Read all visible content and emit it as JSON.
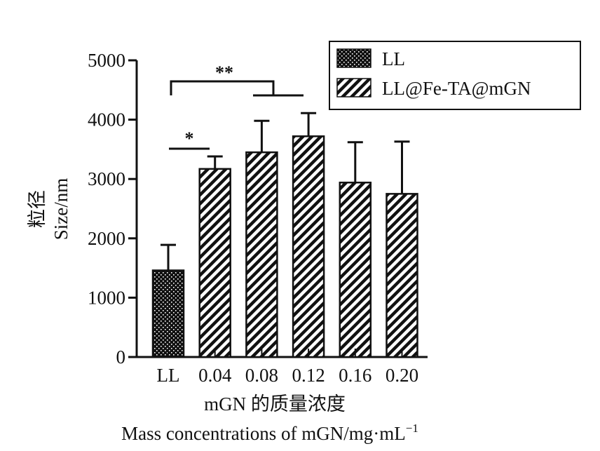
{
  "chart_data": {
    "type": "bar",
    "categories": [
      "LL",
      "0.04",
      "0.08",
      "0.12",
      "0.16",
      "0.20"
    ],
    "series": [
      {
        "name": "LL",
        "pattern": "dots",
        "values": [
          1460,
          null,
          null,
          null,
          null,
          null
        ],
        "errors": [
          430,
          null,
          null,
          null,
          null,
          null
        ]
      },
      {
        "name": "LL@Fe-TA@mGN",
        "pattern": "hatch",
        "values": [
          null,
          3170,
          3450,
          3720,
          2940,
          2750
        ],
        "errors": [
          null,
          210,
          530,
          390,
          680,
          880
        ]
      }
    ],
    "ylabel_cn": "粒径",
    "ylabel": "Size/nm",
    "xlabel_cn": "mGN 的质量浓度",
    "xlabel": "Mass concentrations of mGN/mg·mL",
    "xlabel_sup": "−1",
    "ylim": [
      0,
      5000
    ],
    "yticks": [
      "0",
      "1000",
      "2000",
      "3000",
      "4000",
      "5000"
    ],
    "ytick_values": [
      0,
      1000,
      2000,
      3000,
      4000,
      5000
    ],
    "legend_position": "top-right",
    "grid": false,
    "significance": [
      {
        "label": "*",
        "from": "LL",
        "to": "0.04"
      },
      {
        "label": "**",
        "from": "LL",
        "to": "0.08–0.12"
      }
    ],
    "colors": {
      "bar": "#111111",
      "fill": "#ffffff"
    }
  }
}
